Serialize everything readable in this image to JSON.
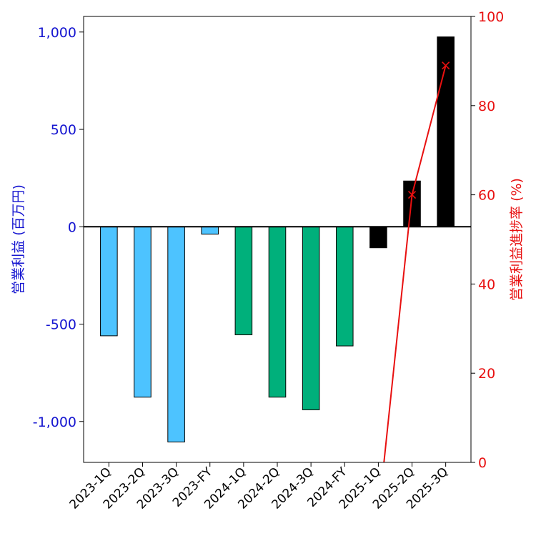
{
  "chart_data": {
    "type": "bar",
    "categories": [
      "2023-1Q",
      "2023-2Q",
      "2023-3Q",
      "2023-FY",
      "2024-1Q",
      "2024-2Q",
      "2024-3Q",
      "2024-FY",
      "2025-1Q",
      "2025-2Q",
      "2025-3Q"
    ],
    "series": [
      {
        "type": "bar",
        "axis": "left",
        "values": [
          -560,
          -875,
          -1105,
          -38,
          -555,
          -875,
          -940,
          -612,
          -108,
          235,
          975
        ],
        "colors": [
          "#4dc3ff",
          "#4dc3ff",
          "#4dc3ff",
          "#4dc3ff",
          "#00b07b",
          "#00b07b",
          "#00b07b",
          "#00b07b",
          "#000000",
          "#000000",
          "#000000"
        ]
      },
      {
        "type": "line",
        "axis": "right",
        "color": "#e81010",
        "marker": "x",
        "values": [
          null,
          null,
          null,
          null,
          null,
          null,
          null,
          null,
          -12,
          60,
          89
        ]
      }
    ],
    "ylabel": "営業利益 (百万円)",
    "y2label": "営業利益進捗率 (%)",
    "ylim": [
      -1210,
      1080
    ],
    "y2lim": [
      0,
      100
    ],
    "yticks": [
      -1000,
      -500,
      0,
      500,
      1000
    ],
    "ytick_labels": [
      "-1,000",
      "-500",
      "0",
      "500",
      "1,000"
    ],
    "y2ticks": [
      0,
      20,
      40,
      60,
      80,
      100
    ],
    "y2tick_labels": [
      "0",
      "20",
      "40",
      "60",
      "80",
      "100"
    ],
    "grid": false,
    "colors": {
      "left_axis": "#1515d0",
      "right_axis": "#e81010",
      "zero_line": "#000000"
    }
  }
}
